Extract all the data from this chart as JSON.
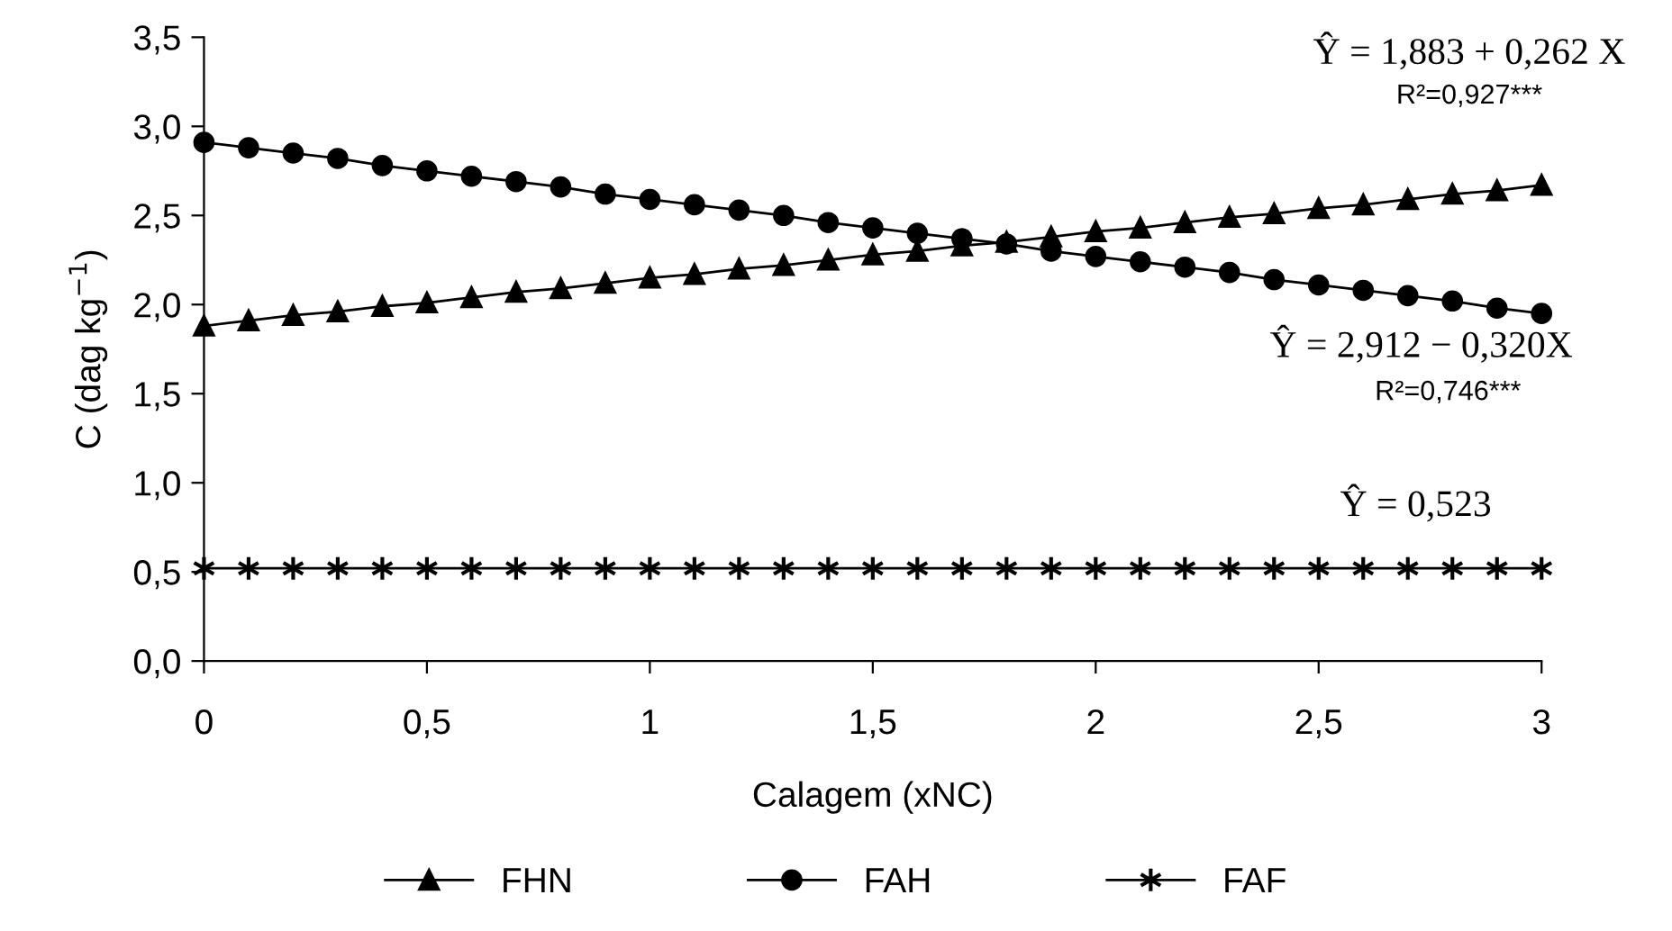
{
  "chart_data": {
    "type": "line",
    "xlabel": "Calagem (xNC)",
    "ylabel": "C (dag kg$^{−1}$)",
    "x": [
      0,
      0.1,
      0.2,
      0.3,
      0.4,
      0.5,
      0.6,
      0.7,
      0.8,
      0.9,
      1.0,
      1.1,
      1.2,
      1.3,
      1.4,
      1.5,
      1.6,
      1.7,
      1.8,
      1.9,
      2.0,
      2.1,
      2.2,
      2.3,
      2.4,
      2.5,
      2.6,
      2.7,
      2.8,
      2.9,
      3.0
    ],
    "series": [
      {
        "name": "FHN",
        "color": "#000000",
        "marker": "triangle",
        "values": [
          1.88,
          1.91,
          1.94,
          1.96,
          1.99,
          2.01,
          2.04,
          2.07,
          2.09,
          2.12,
          2.15,
          2.17,
          2.2,
          2.22,
          2.25,
          2.28,
          2.3,
          2.33,
          2.35,
          2.38,
          2.41,
          2.43,
          2.46,
          2.49,
          2.51,
          2.54,
          2.56,
          2.59,
          2.62,
          2.64,
          2.67
        ]
      },
      {
        "name": "FAH",
        "color": "#000000",
        "marker": "circle",
        "values": [
          2.91,
          2.88,
          2.85,
          2.82,
          2.78,
          2.75,
          2.72,
          2.69,
          2.66,
          2.62,
          2.59,
          2.56,
          2.53,
          2.5,
          2.46,
          2.43,
          2.4,
          2.37,
          2.34,
          2.3,
          2.27,
          2.24,
          2.21,
          2.18,
          2.14,
          2.11,
          2.08,
          2.05,
          2.02,
          1.98,
          1.95
        ]
      },
      {
        "name": "FAF",
        "color": "#000000",
        "marker": "cross",
        "values": [
          0.52,
          0.52,
          0.52,
          0.52,
          0.52,
          0.52,
          0.52,
          0.52,
          0.52,
          0.52,
          0.52,
          0.52,
          0.52,
          0.52,
          0.52,
          0.52,
          0.52,
          0.52,
          0.52,
          0.52,
          0.52,
          0.52,
          0.52,
          0.52,
          0.52,
          0.52,
          0.52,
          0.52,
          0.52,
          0.52,
          0.52
        ]
      }
    ],
    "annotations": [
      "Ŷ = 1,883 + 0,262 X",
      "R²=0,927***",
      "Ŷ = 2,912 − 0,320X",
      "R²=0,746***",
      "Ŷ = 0,523"
    ],
    "xlim": [
      0,
      3
    ],
    "xticks": [
      0,
      {
        "value": 0.5,
        "label": "0,5"
      },
      1,
      {
        "value": 1.5,
        "label": "1,5"
      },
      2,
      {
        "value": 2.5,
        "label": "2,5"
      },
      3
    ],
    "ylim": [
      0,
      3.5
    ],
    "yticks": [
      {
        "value": 0,
        "label": "0,0"
      },
      {
        "value": 0.5,
        "label": "0,5"
      },
      {
        "value": 1,
        "label": "1,0"
      },
      {
        "value": 1.5,
        "label": "1,5"
      },
      {
        "value": 2,
        "label": "2,0"
      },
      {
        "value": 2.5,
        "label": "2,5"
      },
      {
        "value": 3,
        "label": "3,0"
      },
      {
        "value": 3.5,
        "label": "3,5"
      }
    ],
    "grid": false,
    "legend": "bottom",
    "line_style": "solid"
  }
}
